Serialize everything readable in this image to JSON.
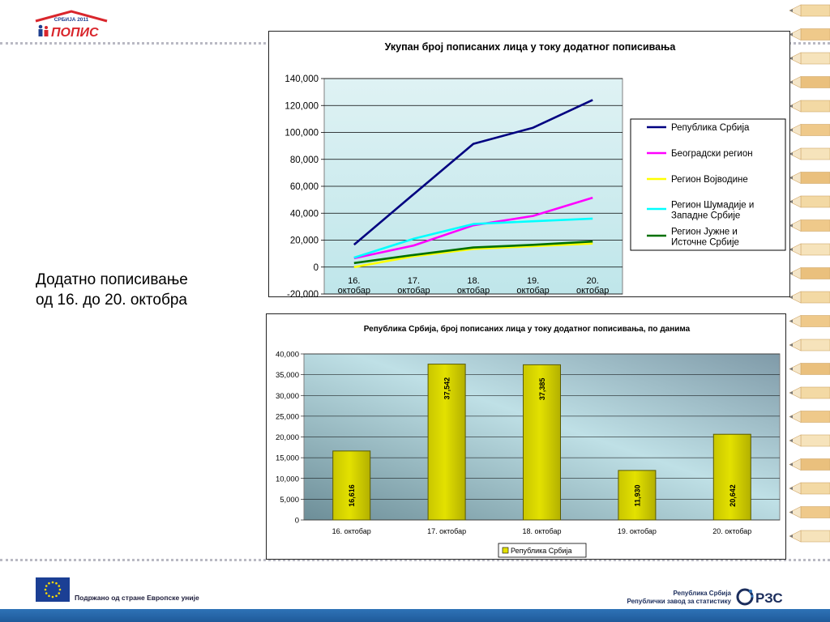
{
  "side_title_line1": "Додатно пописивање",
  "side_title_line2": "од 16. до 20. октобра",
  "logo": {
    "line1": "СРБИЈА 2011",
    "line2": "ПОПИС"
  },
  "footer": {
    "eu_text": "Подржано од стране Европске уније",
    "rzs_line1": "Република Србија",
    "rzs_line2": "Републички завод за статистику",
    "rzs_logo": "РЗС"
  },
  "colors": {
    "plot_bg_top": "#dff2f4",
    "plot_bg_bottom": "#bfe6ea",
    "bar_fill": "#e3e100",
    "bar_stroke": "#5a5a00",
    "footer_strip": "#2f73b7"
  },
  "chart_data": [
    {
      "type": "line",
      "title": "Укупан број пописаних лица у току додатног пописивања",
      "categories": [
        "16. октобар",
        "17. октобар",
        "18. октобар",
        "19. октобар",
        "20. октобар"
      ],
      "category_lines": [
        [
          "16.",
          "октобар"
        ],
        [
          "17.",
          "октобар"
        ],
        [
          "18.",
          "октобар"
        ],
        [
          "19.",
          "октобар"
        ],
        [
          "20.",
          "октобар"
        ]
      ],
      "series": [
        {
          "name": "Република Србија",
          "legend_lines": [
            "Република Србија"
          ],
          "color": "#000080",
          "values": [
            16616,
            54158,
            91543,
            103473,
            124115
          ]
        },
        {
          "name": "Београдски регион",
          "legend_lines": [
            "Београдски регион"
          ],
          "color": "#ff00ff",
          "values": [
            6500,
            16000,
            31000,
            38000,
            51500
          ]
        },
        {
          "name": "Регион Војводине",
          "legend_lines": [
            "Регион Војводине"
          ],
          "color": "#ffff00",
          "values": [
            0,
            8000,
            13500,
            15500,
            17500
          ]
        },
        {
          "name": "Регион Шумадије и Западне Србије",
          "legend_lines": [
            "Регион Шумадије и",
            "Западне Србије"
          ],
          "color": "#00ffff",
          "values": [
            7000,
            21000,
            32000,
            34000,
            36000
          ]
        },
        {
          "name": "Регион Јужне и Источне Србије",
          "legend_lines": [
            "Регион Јужне и",
            "Источне Србије"
          ],
          "color": "#007000",
          "values": [
            3000,
            9000,
            14500,
            16500,
            19000
          ]
        }
      ],
      "ylim": [
        -20000,
        140000
      ],
      "y_ticks": [
        -20000,
        0,
        20000,
        40000,
        60000,
        80000,
        100000,
        120000,
        140000
      ],
      "y_tick_labels": [
        "-20,000",
        "0",
        "20,000",
        "40,000",
        "60,000",
        "80,000",
        "100,000",
        "120,000",
        "140,000"
      ],
      "grid": true,
      "legend_position": "right"
    },
    {
      "type": "bar",
      "title": "Република Србија, број пописаних лица у току додатног пописивања, по данима",
      "categories": [
        "16. октобар",
        "17. октобар",
        "18. октобар",
        "19. октобар",
        "20. октобар"
      ],
      "series": [
        {
          "name": "Република Србија",
          "values": [
            16616,
            37542,
            37385,
            11930,
            20642
          ],
          "value_labels": [
            "16,616",
            "37,542",
            "37,385",
            "11,930",
            "20,642"
          ]
        }
      ],
      "ylim": [
        0,
        40000
      ],
      "y_ticks": [
        0,
        5000,
        10000,
        15000,
        20000,
        25000,
        30000,
        35000,
        40000
      ],
      "y_tick_labels": [
        "0",
        "5,000",
        "10,000",
        "15,000",
        "20,000",
        "25,000",
        "30,000",
        "35,000",
        "40,000"
      ],
      "grid": true,
      "legend_position": "bottom"
    }
  ]
}
